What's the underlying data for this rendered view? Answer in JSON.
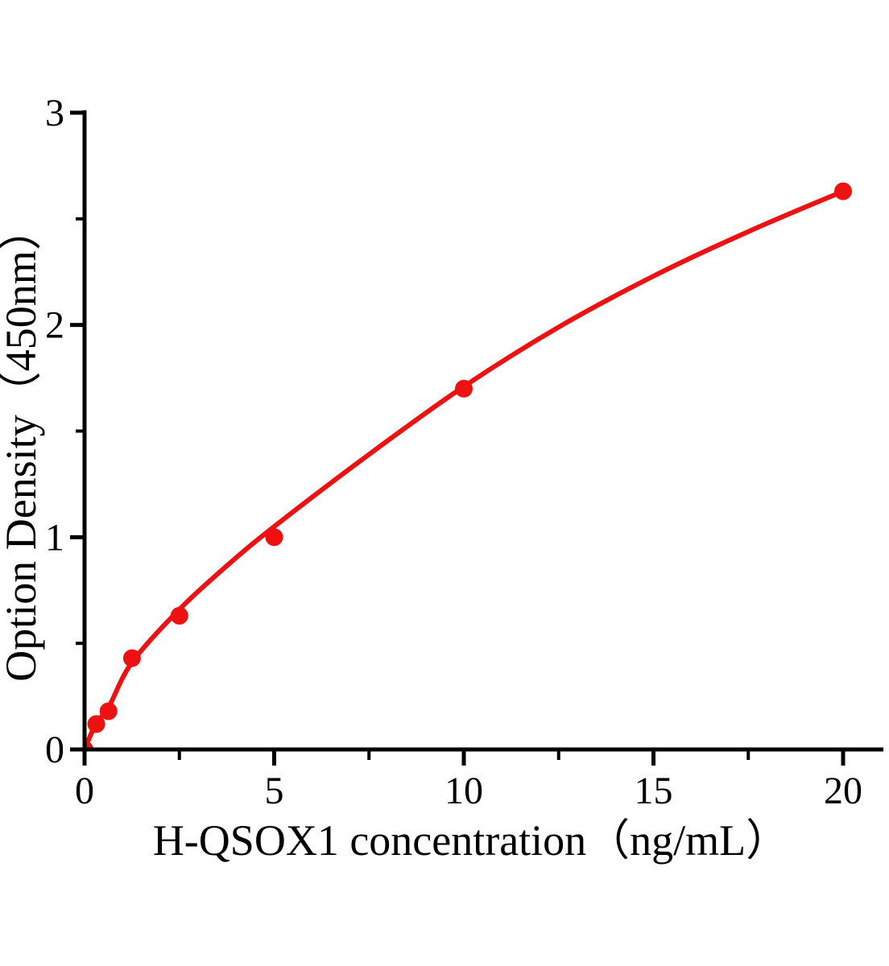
{
  "figure": {
    "background_color": "#ffffff",
    "axis_color": "#000000",
    "accent_color": "#ee1111"
  },
  "chart_data": {
    "type": "scatter",
    "title": "",
    "xlabel": "H-QSOX1 concentration（ng/mL）",
    "ylabel": "Option Density（450nm）",
    "xlim": [
      0,
      21
    ],
    "ylim": [
      0,
      3
    ],
    "grid": false,
    "legend": null,
    "x_major_ticks": [
      0,
      5,
      10,
      15,
      20
    ],
    "x_minor_ticks": [
      2.5,
      7.5,
      12.5,
      17.5
    ],
    "y_major_ticks": [
      0,
      1,
      2,
      3
    ],
    "y_minor_ticks": [
      0.5,
      1.5,
      2.5
    ],
    "series": [
      {
        "name": "standard-points",
        "type": "scatter",
        "color": "#ee1111",
        "marker_radius": 11,
        "points": [
          [
            0,
            0
          ],
          [
            0.31,
            0.12
          ],
          [
            0.63,
            0.18
          ],
          [
            1.25,
            0.43
          ],
          [
            2.5,
            0.63
          ],
          [
            5,
            1.0
          ],
          [
            10,
            1.7
          ],
          [
            20,
            2.63
          ]
        ]
      },
      {
        "name": "fitted-curve",
        "type": "line",
        "color": "#ee1111",
        "line_width": 6,
        "points": [
          [
            0,
            0
          ],
          [
            0.31,
            0.125
          ],
          [
            0.625,
            0.195
          ],
          [
            1.25,
            0.41
          ],
          [
            2.5,
            0.66
          ],
          [
            3.75,
            0.865
          ],
          [
            5,
            1.05
          ],
          [
            7.5,
            1.39
          ],
          [
            10,
            1.71
          ],
          [
            12.5,
            1.99
          ],
          [
            15,
            2.23
          ],
          [
            17.5,
            2.44
          ],
          [
            20,
            2.63
          ]
        ]
      }
    ]
  }
}
